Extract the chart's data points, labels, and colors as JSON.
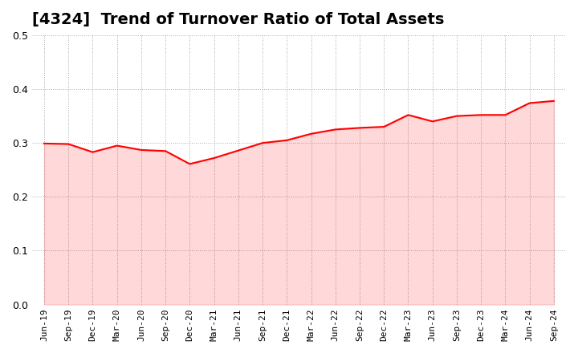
{
  "title": "[4324]  Trend of Turnover Ratio of Total Assets",
  "title_fontsize": 14,
  "title_fontweight": "bold",
  "line_color": "#FF0000",
  "line_width": 1.5,
  "background_color": "#FFFFFF",
  "grid_color": "#AAAAAA",
  "ylim": [
    0.0,
    0.5
  ],
  "yticks": [
    0.0,
    0.1,
    0.2,
    0.3,
    0.4,
    0.5
  ],
  "x_labels": [
    "Jun-19",
    "Sep-19",
    "Dec-19",
    "Mar-20",
    "Jun-20",
    "Sep-20",
    "Dec-20",
    "Mar-21",
    "Jun-21",
    "Sep-21",
    "Dec-21",
    "Mar-22",
    "Jun-22",
    "Sep-22",
    "Dec-22",
    "Mar-23",
    "Jun-23",
    "Sep-23",
    "Dec-23",
    "Mar-24",
    "Jun-24",
    "Sep-24"
  ],
  "values": [
    0.299,
    0.298,
    0.283,
    0.295,
    0.287,
    0.285,
    0.261,
    0.272,
    0.286,
    0.3,
    0.305,
    0.317,
    0.325,
    0.328,
    0.33,
    0.352,
    0.34,
    0.35,
    0.352,
    0.352,
    0.374,
    0.378
  ]
}
